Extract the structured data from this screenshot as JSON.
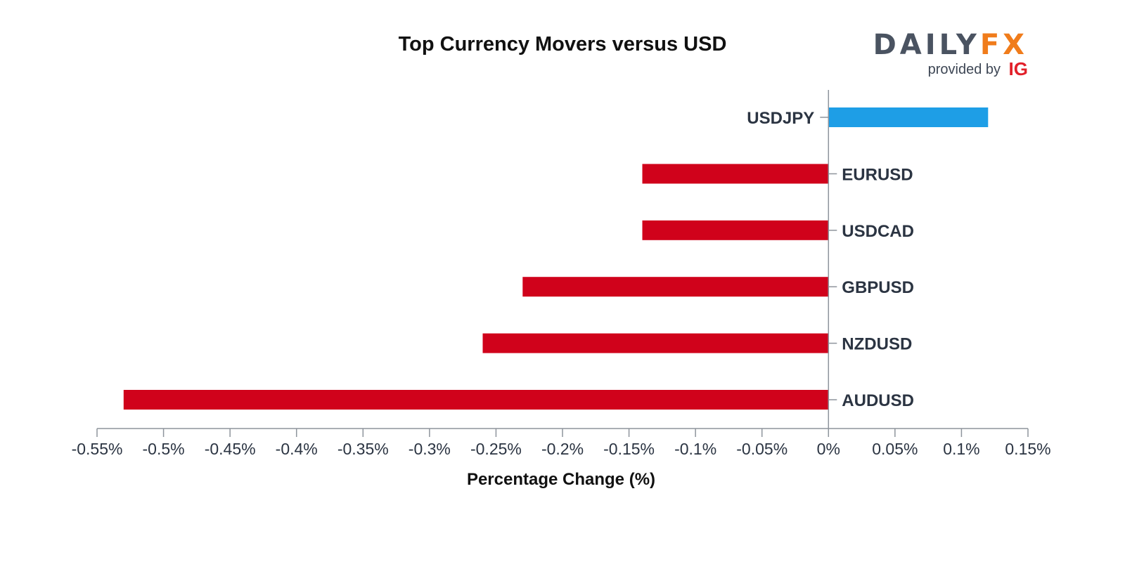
{
  "logo": {
    "daily_text": "DAILY",
    "fx_text": "FX",
    "provided_by": "provided by",
    "ig_text": "IG",
    "daily_color": "#4a5361",
    "fx_color": "#f07c1b",
    "ig_color": "#e2202a"
  },
  "colors": {
    "positive": "#1e9ee6",
    "negative": "#d0021b",
    "axis": "#8e949c"
  },
  "chart_data": {
    "type": "bar",
    "orientation": "horizontal",
    "title": "Top Currency Movers versus USD",
    "xlabel": "Percentage Change (%)",
    "ylabel": "",
    "categories": [
      "USDJPY",
      "EURUSD",
      "USDCAD",
      "GBPUSD",
      "NZDUSD",
      "AUDUSD"
    ],
    "values": [
      0.12,
      -0.14,
      -0.14,
      -0.23,
      -0.26,
      -0.53
    ],
    "xlim": [
      -0.55,
      0.15
    ],
    "xticks": [
      -0.55,
      -0.5,
      -0.45,
      -0.4,
      -0.35,
      -0.3,
      -0.25,
      -0.2,
      -0.15,
      -0.1,
      -0.05,
      0,
      0.05,
      0.1,
      0.15
    ],
    "xtick_labels": [
      "-0.55%",
      "-0.5%",
      "-0.45%",
      "-0.4%",
      "-0.35%",
      "-0.3%",
      "-0.25%",
      "-0.2%",
      "-0.15%",
      "-0.1%",
      "-0.05%",
      "0%",
      "0.05%",
      "0.1%",
      "0.15%"
    ],
    "grid": false,
    "legend": "none"
  }
}
